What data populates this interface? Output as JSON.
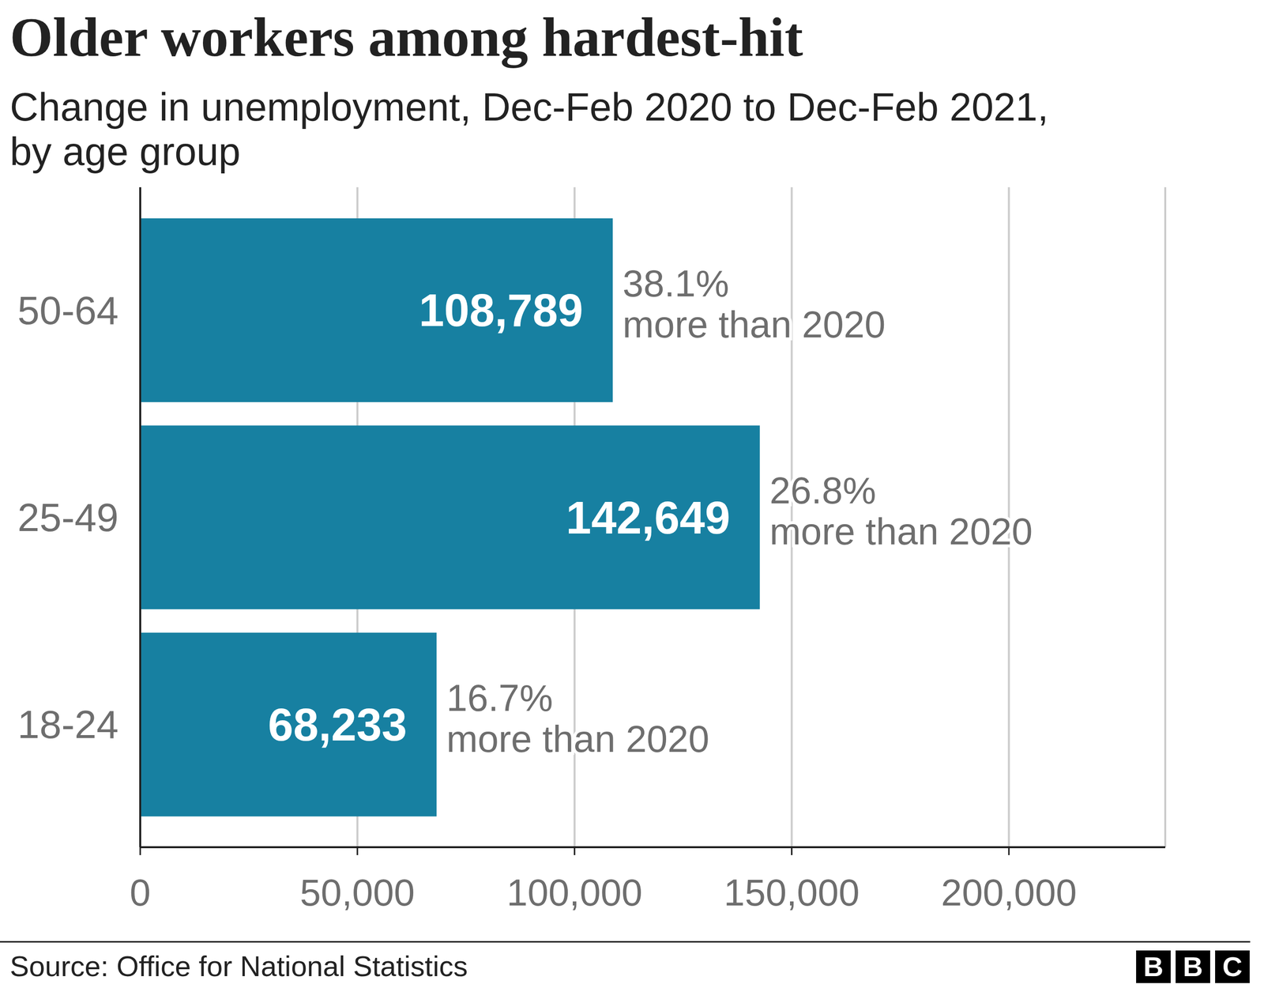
{
  "chart_data": {
    "type": "bar",
    "orientation": "horizontal",
    "title": "Older workers among hardest-hit",
    "subtitle": [
      "Change in unemployment, Dec-Feb 2020 to Dec-Feb 2021,",
      "by age group"
    ],
    "categories": [
      "50-64",
      "25-49",
      "18-24"
    ],
    "values": [
      108789,
      142649,
      68233
    ],
    "value_labels": [
      "108,789",
      "142,649",
      "68,233"
    ],
    "data_labels": true,
    "annotations": [
      [
        "38.1%",
        "more than 2020"
      ],
      [
        "26.8%",
        "more than 2020"
      ],
      [
        "16.7%",
        "more than 2020"
      ]
    ],
    "color": "#1780a1",
    "xlim": [
      0,
      236000
    ],
    "xticks": [
      0,
      {
        "value": 50000,
        "label": "50,000"
      },
      {
        "value": 100000,
        "label": "100,000"
      },
      {
        "value": 150000,
        "label": "150,000"
      },
      {
        "value": 200000,
        "label": "200,000"
      }
    ],
    "grid": true,
    "source": "Source: Office for National Statistics",
    "logo": "BBC"
  }
}
